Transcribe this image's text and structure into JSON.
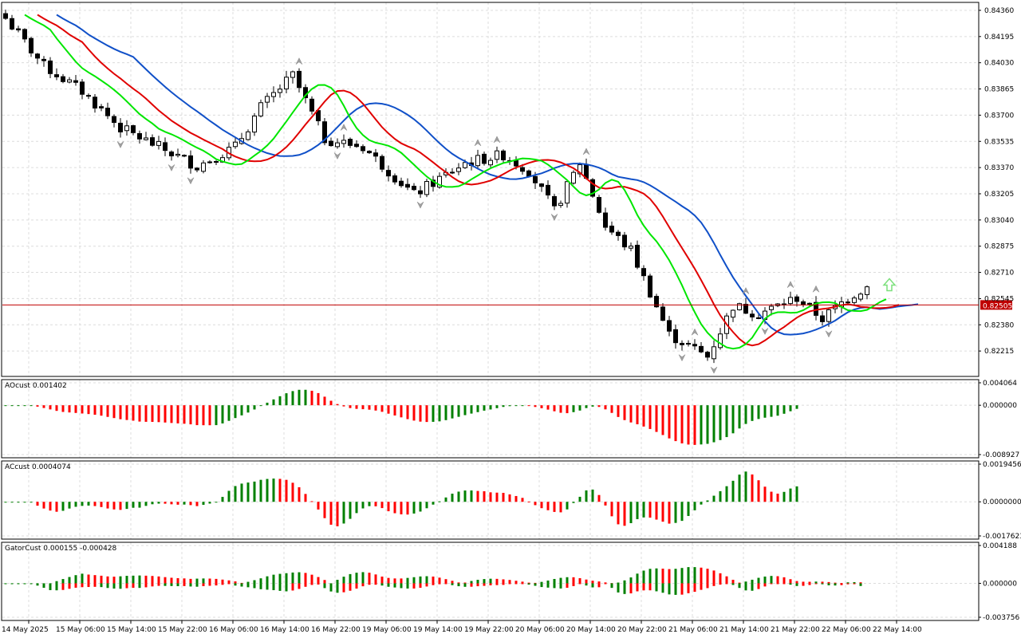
{
  "colors": {
    "bull_bar": "#008000",
    "bear_bar": "#ff0000",
    "ma_fast": "#00e600",
    "ma_mid": "#e00000",
    "ma_slow": "#1050c8",
    "price_line": "#c00000",
    "signal_arrow": "#7ce07c",
    "fractal": "#a0a0a0",
    "grid": "#dcdcdc"
  },
  "chart_data": [
    {
      "type": "candlestick",
      "panel": "main",
      "timeframe_note": "H2",
      "y_ticks": [
        "0.84360",
        "0.84195",
        "0.84030",
        "0.83865",
        "0.83700",
        "0.83535",
        "0.83370",
        "0.83205",
        "0.83040",
        "0.82875",
        "0.82710",
        "0.82545",
        "0.82380",
        "0.82215"
      ],
      "ylim": [
        0.82055,
        0.8441
      ],
      "current_price": 0.82505,
      "current_price_label": "0.82505",
      "overlays": [
        "ma_fast",
        "ma_mid",
        "ma_slow",
        "fractals",
        "signal_arrow_up"
      ]
    },
    {
      "type": "bar",
      "panel": "ao",
      "label": "AOcust 0.001402",
      "value": 0.001402,
      "y_ticks": [
        "0.004064",
        "0.000000",
        "-0.008927"
      ],
      "ylim": [
        -0.008927,
        0.004064
      ]
    },
    {
      "type": "bar",
      "panel": "ac",
      "label": "ACcust 0.0004074",
      "value": 0.0004074,
      "y_ticks": [
        "0.0019456",
        "0.0000000",
        "-0.0017623"
      ],
      "ylim": [
        -0.0017623,
        0.0019456
      ]
    },
    {
      "type": "bar",
      "panel": "gator",
      "label": "GatorCust 0.000155 -0.000428",
      "values": [
        0.000155,
        -0.000428
      ],
      "y_ticks": [
        "0.004188",
        "0.000000",
        "-0.003756"
      ],
      "ylim": [
        -0.003756,
        0.004188
      ]
    }
  ],
  "x_ticks": [
    "14 May 2025",
    "15 May 06:00",
    "15 May 14:00",
    "15 May 22:00",
    "16 May 06:00",
    "16 May 14:00",
    "16 May 22:00",
    "19 May 06:00",
    "19 May 14:00",
    "19 May 22:00",
    "20 May 06:00",
    "20 May 14:00",
    "20 May 22:00",
    "21 May 06:00",
    "21 May 14:00",
    "21 May 22:00",
    "22 May 06:00",
    "22 May 14:00"
  ]
}
